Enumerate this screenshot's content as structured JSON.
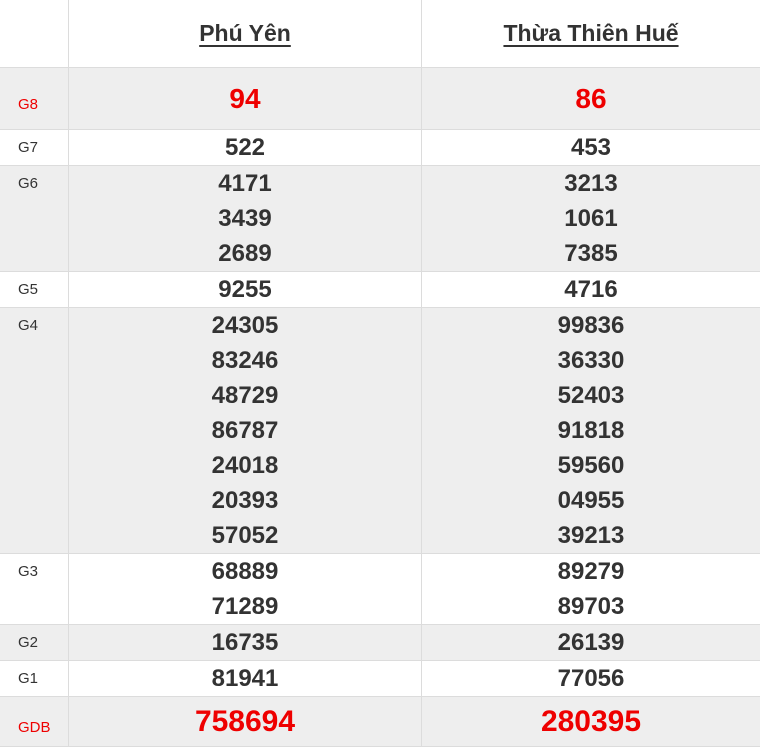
{
  "header": {
    "provinces": [
      "Phú Yên",
      "Thừa Thiên Huế"
    ]
  },
  "prizes": [
    {
      "label": "G8",
      "highlight": true,
      "values": [
        [
          "94"
        ],
        [
          "86"
        ]
      ]
    },
    {
      "label": "G7",
      "highlight": false,
      "values": [
        [
          "522"
        ],
        [
          "453"
        ]
      ]
    },
    {
      "label": "G6",
      "highlight": false,
      "values": [
        [
          "4171",
          "3439",
          "2689"
        ],
        [
          "3213",
          "1061",
          "7385"
        ]
      ]
    },
    {
      "label": "G5",
      "highlight": false,
      "values": [
        [
          "9255"
        ],
        [
          "4716"
        ]
      ]
    },
    {
      "label": "G4",
      "highlight": false,
      "values": [
        [
          "24305",
          "83246",
          "48729",
          "86787",
          "24018",
          "20393",
          "57052"
        ],
        [
          "99836",
          "36330",
          "52403",
          "91818",
          "59560",
          "04955",
          "39213"
        ]
      ]
    },
    {
      "label": "G3",
      "highlight": false,
      "values": [
        [
          "68889",
          "71289"
        ],
        [
          "89279",
          "89703"
        ]
      ]
    },
    {
      "label": "G2",
      "highlight": false,
      "values": [
        [
          "16735"
        ],
        [
          "26139"
        ]
      ]
    },
    {
      "label": "G1",
      "highlight": false,
      "values": [
        [
          "81941"
        ],
        [
          "77056"
        ]
      ]
    },
    {
      "label": "GDB",
      "highlight": true,
      "values": [
        [
          "758694"
        ],
        [
          "280395"
        ]
      ]
    }
  ],
  "colors": {
    "highlight": "#ee0000",
    "text": "#333333",
    "row_alt": "#eeeeee"
  }
}
